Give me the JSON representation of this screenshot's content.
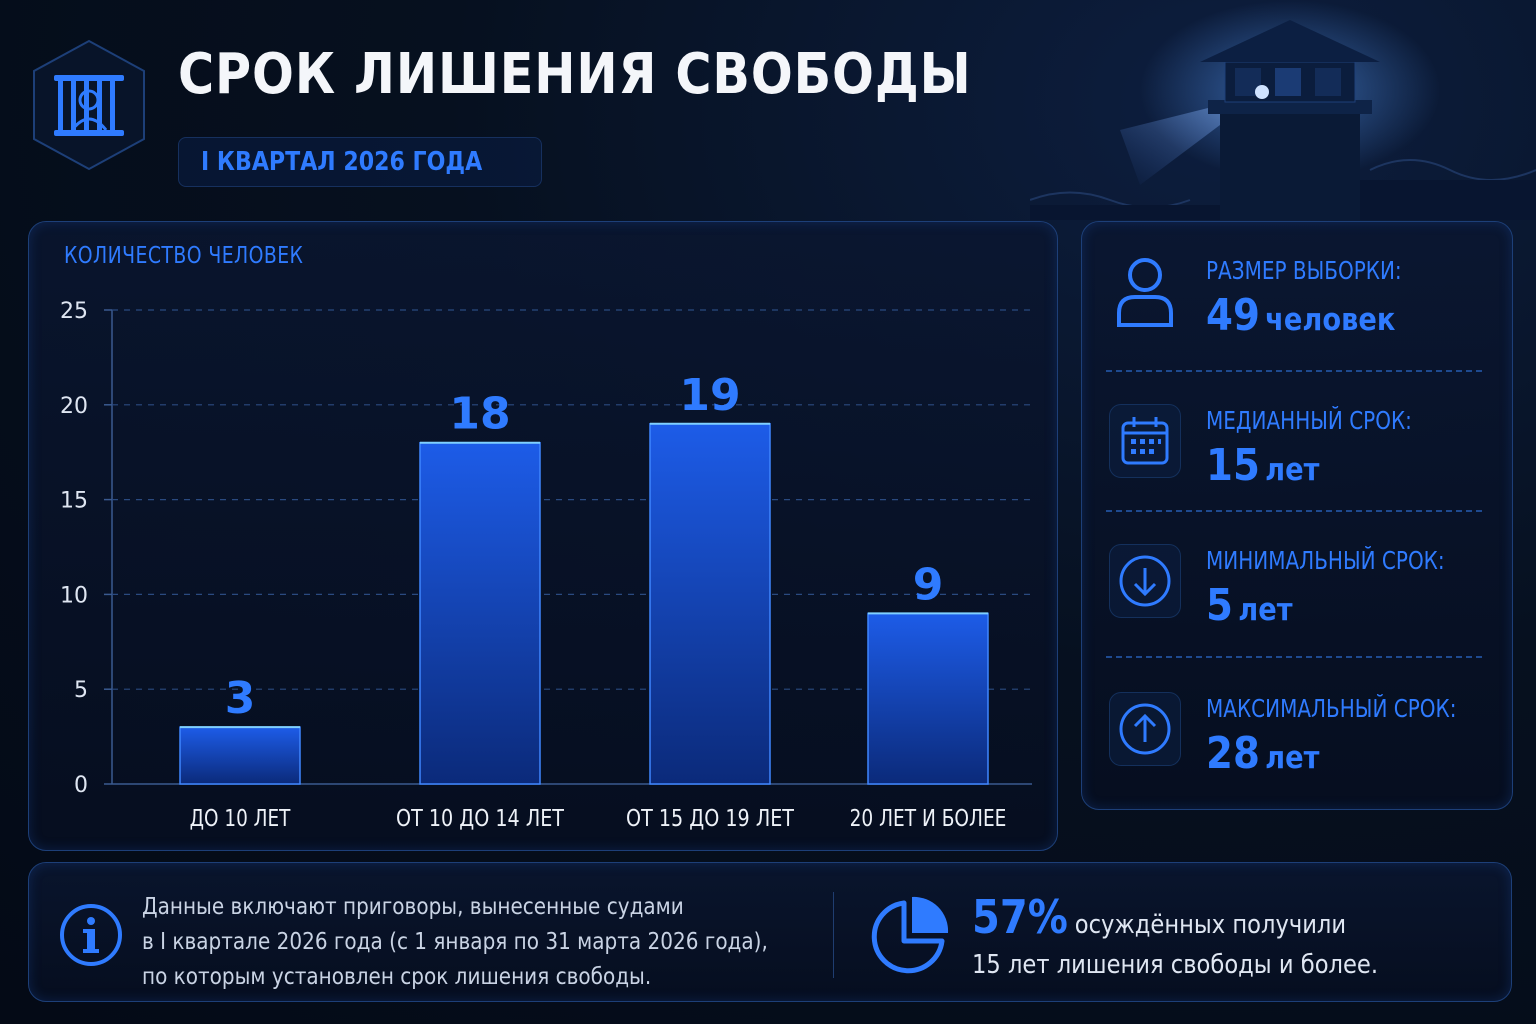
{
  "header": {
    "title": "СРОК ЛИШЕНИЯ СВОБОДЫ",
    "subtitle": "I КВАРТАЛ 2026 ГОДА"
  },
  "colors": {
    "accent": "#2f7bff",
    "bar_top": "#1d5ce8",
    "bar_bottom": "#0b2a7a",
    "grid": "#2a4a80"
  },
  "chart_data": {
    "type": "bar",
    "ylabel": "КОЛИЧЕСТВО ЧЕЛОВЕК",
    "categories": [
      "ДО 10 ЛЕТ",
      "ОТ 10 ДО 14 ЛЕТ",
      "ОТ 15 ДО 19 ЛЕТ",
      "20 ЛЕТ И БОЛЕЕ"
    ],
    "values": [
      3,
      18,
      19,
      9
    ],
    "ylim": [
      0,
      25
    ],
    "yticks": [
      0,
      5,
      10,
      15,
      20,
      25
    ],
    "grid": true,
    "data_labels": true
  },
  "stats": [
    {
      "icon": "person-icon",
      "label": "РАЗМЕР ВЫБОРКИ:",
      "value": "49",
      "unit": "человек"
    },
    {
      "icon": "calendar-icon",
      "label": "МЕДИАННЫЙ СРОК:",
      "value": "15",
      "unit": "лет"
    },
    {
      "icon": "arrow-down-icon",
      "label": "МИНИМАЛЬНЫЙ СРОК:",
      "value": "5",
      "unit": "лет"
    },
    {
      "icon": "arrow-up-icon",
      "label": "МАКСИМАЛЬНЫЙ СРОК:",
      "value": "28",
      "unit": "лет"
    }
  ],
  "note": {
    "icon": "info-icon",
    "lines": [
      "Данные включают приговоры, вынесенные судами",
      "в I квартале 2026 года (с 1 января по 31 марта 2026 года),",
      "по которым установлен срок лишения свободы."
    ]
  },
  "highlight": {
    "icon": "pie-chart-icon",
    "percent": "57%",
    "text1": "осуждённых получили",
    "text2": "15 лет лишения свободы и более."
  }
}
